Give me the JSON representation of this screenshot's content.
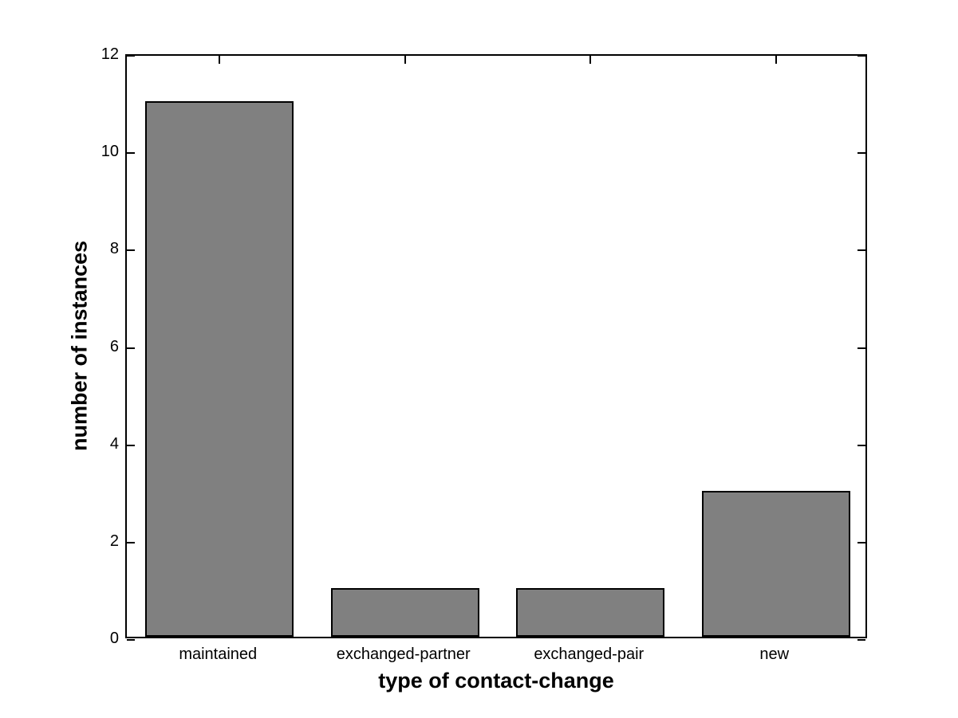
{
  "chart_data": {
    "type": "bar",
    "categories": [
      "maintained",
      "exchanged-partner",
      "exchanged-pair",
      "new"
    ],
    "values": [
      11,
      1,
      1,
      3
    ],
    "xlabel": "type of contact-change",
    "ylabel": "number of instances",
    "ylim": [
      0,
      12
    ],
    "yticks": [
      0,
      2,
      4,
      6,
      8,
      10,
      12
    ],
    "bar_width_fraction": 0.8,
    "bar_fill_color": "#808080",
    "bar_edge_color": "#000000",
    "axis_color": "#000000",
    "text_color": "#000000",
    "background_color": "#ffffff",
    "grid": false,
    "legend": false
  }
}
